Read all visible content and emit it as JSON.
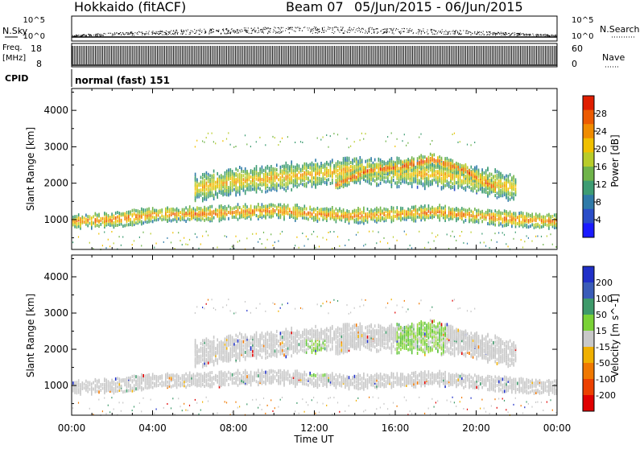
{
  "header": {
    "station": "Hokkaido (fitACF)",
    "beam": "Beam 07",
    "date_range": "05/Jun/2015 - 06/Jun/2015"
  },
  "summary": {
    "nsky": {
      "label": "N.Sky",
      "ticks": [
        "10^5",
        "10^0"
      ]
    },
    "nsearch": {
      "label": "N.Search",
      "ticks": [
        "10^5",
        "10^0"
      ]
    },
    "freq": {
      "label_top": "Freq.",
      "label_unit": "[MHz]",
      "ticks": [
        "18",
        "8"
      ]
    },
    "nave": {
      "label": "Nave",
      "ticks": [
        "60",
        "0"
      ]
    },
    "cpid": {
      "label": "CPID",
      "value": "normal (fast) 151"
    }
  },
  "chart_data": [
    {
      "type": "heatmap",
      "name": "power-panel",
      "ylabel": "Slant Range [km]",
      "ylim": [
        180,
        4600
      ],
      "yticks": [
        1000,
        2000,
        3000,
        4000
      ],
      "xlabel": "",
      "xticks": [
        "00:00",
        "04:00",
        "08:00",
        "12:00",
        "16:00",
        "20:00",
        "00:00"
      ],
      "xlim_hours": [
        0,
        24
      ],
      "colorbar": {
        "label": "Power [dB]",
        "range": [
          0,
          32
        ],
        "ticks": [
          4,
          8,
          12,
          16,
          20,
          24,
          28
        ],
        "colors": [
          "#1a1aff",
          "#2a4dc8",
          "#2f7aa8",
          "#3e9c73",
          "#6fb44a",
          "#b8cc2a",
          "#f0c000",
          "#f08c00",
          "#ec5a00",
          "#e01e00"
        ]
      },
      "echo_bands": [
        {
          "hours": [
            0,
            24
          ],
          "range_center": [
            1000,
            1050,
            1180,
            1200,
            1250,
            1300,
            1200,
            1150,
            1200,
            1250,
            1150,
            1050,
            1000
          ],
          "width": 380,
          "power": 22
        },
        {
          "hours": [
            6,
            22
          ],
          "range_center": [
            1900,
            2100,
            2200,
            2300,
            2400,
            2350,
            2300,
            2150,
            1900
          ],
          "width": 700,
          "power": 19
        },
        {
          "hours": [
            13,
            21
          ],
          "range_center": [
            2000,
            2400,
            2500,
            2700,
            2400,
            1900
          ],
          "width": 350,
          "power": 24
        }
      ]
    },
    {
      "type": "heatmap",
      "name": "velocity-panel",
      "ylabel": "Slant Range [km]",
      "ylim": [
        180,
        4600
      ],
      "yticks": [
        1000,
        2000,
        3000,
        4000
      ],
      "xlabel": "Time UT",
      "xticks": [
        "00:00",
        "04:00",
        "08:00",
        "12:00",
        "16:00",
        "20:00",
        "00:00"
      ],
      "xlim_hours": [
        0,
        24
      ],
      "colorbar": {
        "label": "Velocity [m s^-1]",
        "ticks": [
          200,
          100,
          50,
          15,
          -15,
          -50,
          -100,
          -200
        ],
        "colors": [
          "#2030c8",
          "#3a5cb8",
          "#3e9a6a",
          "#7ad236",
          "#c8c8c8",
          "#f0b000",
          "#f07800",
          "#ec4000",
          "#e00000"
        ]
      },
      "green_regions": [
        {
          "hours": [
            11.5,
            12.5
          ],
          "ranges": [
            1300,
            2300
          ]
        },
        {
          "hours": [
            16,
            18.5
          ],
          "ranges": [
            1900,
            3300
          ]
        }
      ]
    }
  ]
}
